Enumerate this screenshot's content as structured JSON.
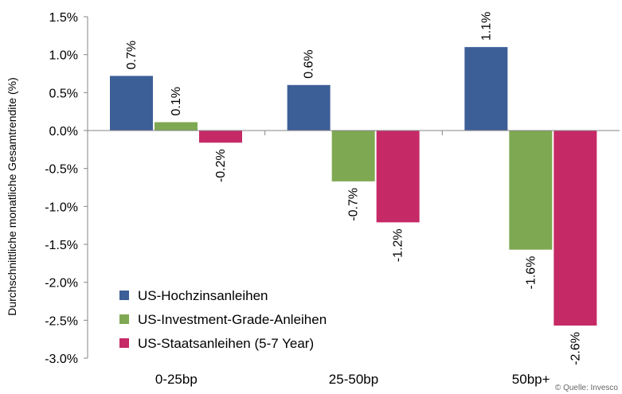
{
  "chart_data": {
    "type": "bar",
    "ylabel": "Durchschnittliche monatliche Gesamtrendite (%)",
    "ylim": [
      -3.0,
      1.5
    ],
    "yticks": [
      1.5,
      1.0,
      0.5,
      0.0,
      -0.5,
      -1.0,
      -1.5,
      -2.0,
      -2.5,
      -3.0
    ],
    "ytick_labels": [
      "1.5%",
      "1.0%",
      "0.5%",
      "0.0%",
      "-0.5%",
      "-1.0%",
      "-1.5%",
      "-2.0%",
      "-2.5%",
      "-3.0%"
    ],
    "categories": [
      "0-25bp",
      "25-50bp",
      "50bp+"
    ],
    "series": [
      {
        "name": "US-Hochzinsanleihen",
        "color": "#3d5f98",
        "values": [
          0.72,
          0.6,
          1.1
        ],
        "labels": [
          "0.7%",
          "0.6%",
          "1.1%"
        ]
      },
      {
        "name": "US-Investment-Grade-Anleihen",
        "color": "#7fa852",
        "values": [
          0.11,
          -0.67,
          -1.57
        ],
        "labels": [
          "0.1%",
          "-0.7%",
          "-1.6%"
        ]
      },
      {
        "name": "US-Staatsanleihen (5-7 Year)",
        "color": "#c62a66",
        "values": [
          -0.16,
          -1.21,
          -2.57
        ],
        "labels": [
          "-0.2%",
          "-1.2%",
          "-2.6%"
        ]
      }
    ],
    "legend_position": "bottom-left",
    "grid": false
  },
  "source": "© Quelle: Invesco"
}
